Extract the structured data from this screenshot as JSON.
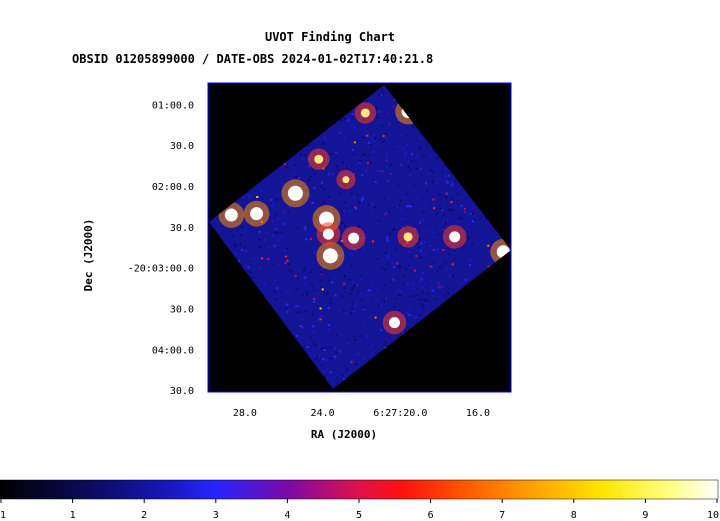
{
  "chart_data": {
    "type": "heatmap",
    "title": "UVOT Finding Chart",
    "subtitle": "OBSID 01205899000 / DATE-OBS 2024-01-02T17:40:21.8",
    "xlabel": "RA (J2000)",
    "ylabel": "Dec (J2000)",
    "x_ticks": [
      {
        "label": "28.0",
        "ra_sec": 28.0
      },
      {
        "label": "24.0",
        "ra_sec": 24.0
      },
      {
        "label": "6:27:20.0",
        "ra_sec": 20.0
      },
      {
        "label": "16.0",
        "ra_sec": 16.0
      }
    ],
    "y_ticks": [
      {
        "label": "01:00.0",
        "dec_sec": 60
      },
      {
        "label": "30.0",
        "dec_sec": 90
      },
      {
        "label": "02:00.0",
        "dec_sec": 120
      },
      {
        "label": "30.0",
        "dec_sec": 150
      },
      {
        "label": "-20:03:00.0",
        "dec_sec": 180
      },
      {
        "label": "30.0",
        "dec_sec": 210
      },
      {
        "label": "04:00.0",
        "dec_sec": 240
      },
      {
        "label": "30.0",
        "dec_sec": 270
      }
    ],
    "xlim_ra_sec": [
      29.9,
      14.3
    ],
    "ylim_dec_sec": [
      44,
      271
    ],
    "colorbar": {
      "colormap": "heat",
      "range": [
        1,
        10
      ],
      "ticks": [
        "1",
        "1",
        "2",
        "3",
        "4",
        "5",
        "6",
        "7",
        "8",
        "9",
        "10"
      ]
    },
    "sources": [
      {
        "ra_sec": 25.4,
        "dec_sec": 125,
        "brightness": 10
      },
      {
        "ra_sec": 27.4,
        "dec_sec": 140,
        "brightness": 9
      },
      {
        "ra_sec": 28.7,
        "dec_sec": 141,
        "brightness": 9
      },
      {
        "ra_sec": 23.8,
        "dec_sec": 144,
        "brightness": 10
      },
      {
        "ra_sec": 23.6,
        "dec_sec": 171,
        "brightness": 10
      },
      {
        "ra_sec": 22.4,
        "dec_sec": 158,
        "brightness": 8
      },
      {
        "ra_sec": 19.6,
        "dec_sec": 157,
        "brightness": 7
      },
      {
        "ra_sec": 17.2,
        "dec_sec": 157,
        "brightness": 8
      },
      {
        "ra_sec": 14.7,
        "dec_sec": 168,
        "brightness": 9
      },
      {
        "ra_sec": 20.3,
        "dec_sec": 220,
        "brightness": 8
      },
      {
        "ra_sec": 21.8,
        "dec_sec": 66,
        "brightness": 7
      },
      {
        "ra_sec": 19.6,
        "dec_sec": 65,
        "brightness": 9
      },
      {
        "ra_sec": 24.2,
        "dec_sec": 100,
        "brightness": 7
      },
      {
        "ra_sec": 23.7,
        "dec_sec": 155,
        "brightness": 8
      },
      {
        "ra_sec": 22.8,
        "dec_sec": 115,
        "brightness": 6
      }
    ]
  }
}
